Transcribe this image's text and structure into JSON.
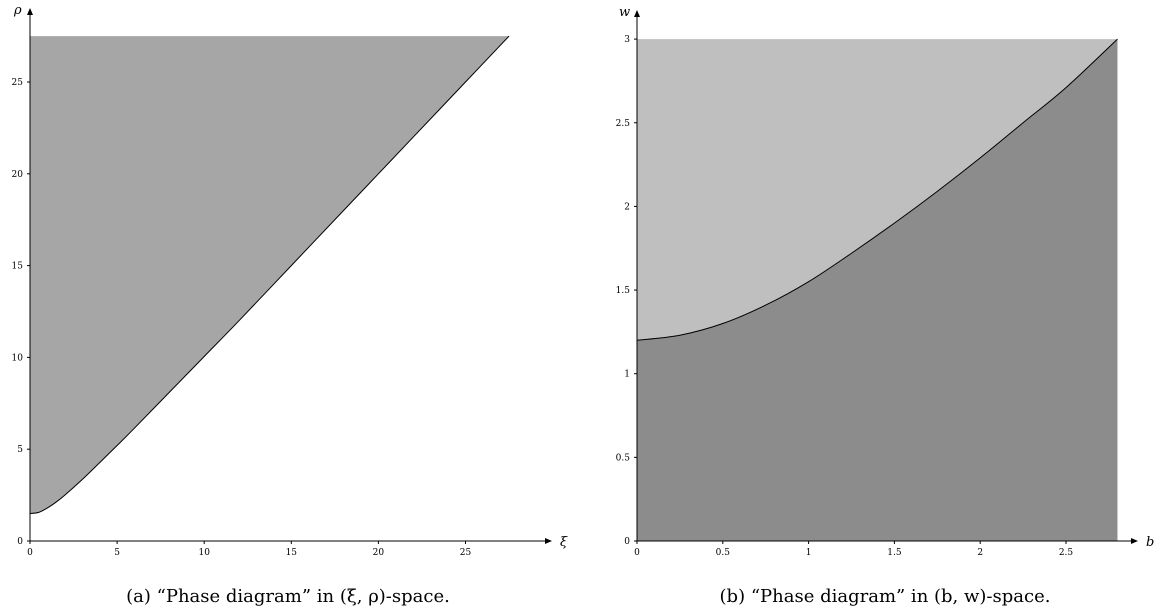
{
  "chart_data": [
    {
      "type": "area",
      "caption": "(a) “Phase diagram” in (ξ, ρ)-space.",
      "xlabel": "ξ",
      "ylabel": "ρ",
      "xlim": [
        0,
        27.5
      ],
      "ylim": [
        0,
        27.5
      ],
      "xticks": [
        "0",
        "5",
        "10",
        "15",
        "20",
        "25"
      ],
      "yticks": [
        "0",
        "5",
        "10",
        "15",
        "20",
        "25"
      ],
      "fill_color": "#a6a6a6",
      "boundary": {
        "x": [
          0,
          0.5,
          1,
          1.5,
          2,
          3,
          4,
          5,
          6,
          8,
          10,
          12,
          15,
          18,
          20,
          22,
          25,
          27.5
        ],
        "y": [
          1.5,
          1.56,
          1.8,
          2.12,
          2.5,
          3.35,
          4.27,
          5.2,
          6.15,
          8.1,
          10.05,
          12.0,
          15.0,
          18.0,
          20.0,
          22.0,
          25.0,
          27.5
        ]
      },
      "shaded_region": "above boundary"
    },
    {
      "type": "area",
      "caption": "(b) “Phase diagram” in (b, w)-space.",
      "xlabel": "b",
      "ylabel": "w",
      "xlim": [
        0,
        2.8
      ],
      "ylim": [
        0,
        3
      ],
      "xticks": [
        "0",
        "0.5",
        "1",
        "1.5",
        "2",
        "2.5"
      ],
      "yticks": [
        "0",
        "0.5",
        "1",
        "1.5",
        "2",
        "2.5",
        "3"
      ],
      "upper_color": "#bfbfbf",
      "lower_color": "#8c8c8c",
      "boundary": {
        "x": [
          0,
          0.25,
          0.5,
          0.75,
          1.0,
          1.25,
          1.5,
          1.75,
          2.0,
          2.25,
          2.5,
          2.8
        ],
        "y": [
          1.2,
          1.23,
          1.3,
          1.41,
          1.55,
          1.72,
          1.9,
          2.09,
          2.29,
          2.5,
          2.71,
          3.0
        ]
      }
    }
  ]
}
